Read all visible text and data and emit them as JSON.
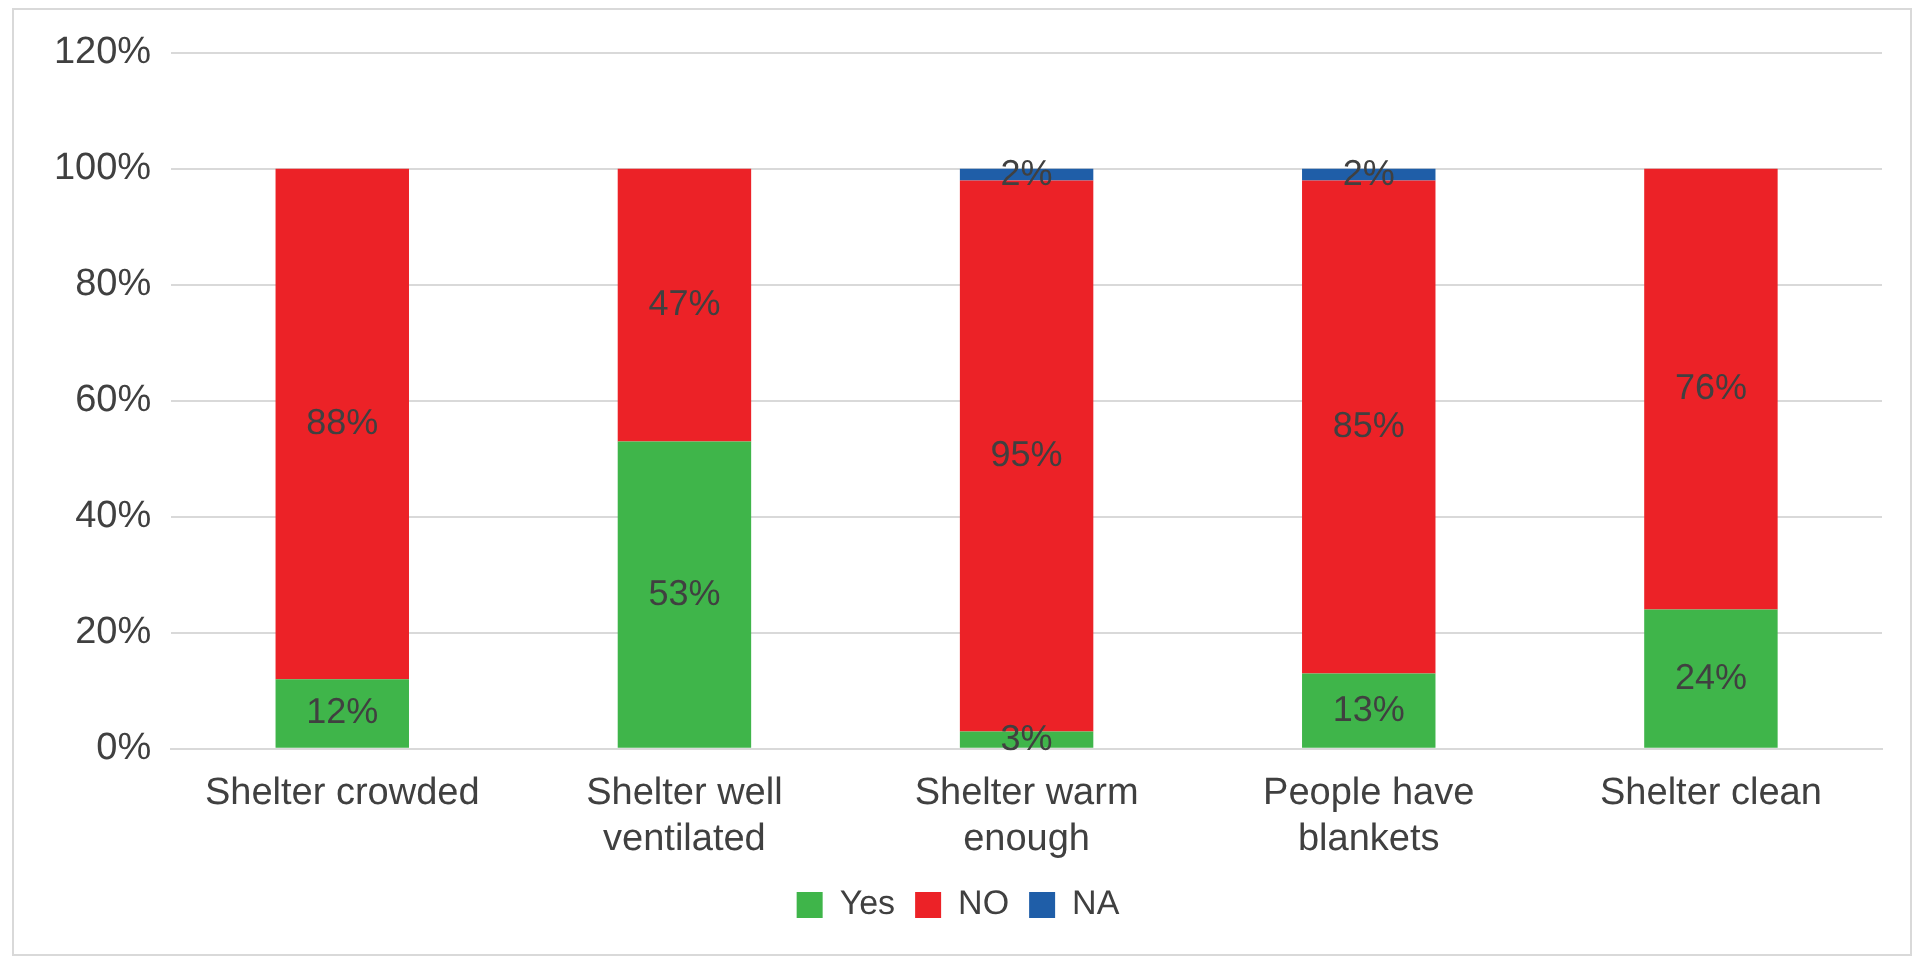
{
  "chart_data": {
    "type": "bar",
    "stacked": true,
    "categories": [
      "Shelter crowded",
      "Shelter well ventilated",
      "Shelter warm enough",
      "People have blankets",
      "Shelter clean"
    ],
    "series": [
      {
        "name": "Yes",
        "color": "#3fb54a",
        "values": [
          12,
          53,
          3,
          13,
          24
        ],
        "value_labels": [
          "12%",
          "53%",
          "3%",
          "13%",
          "24%"
        ]
      },
      {
        "name": "NO",
        "color": "#ec2227",
        "values": [
          88,
          47,
          95,
          85,
          76
        ],
        "value_labels": [
          "88%",
          "47%",
          "95%",
          "85%",
          "76%"
        ]
      },
      {
        "name": "NA",
        "color": "#1f5ea8",
        "values": [
          null,
          null,
          2,
          2,
          null
        ],
        "value_labels": [
          null,
          null,
          "2%",
          "2%",
          null
        ]
      }
    ],
    "ylim": [
      0,
      120
    ],
    "yticks": [
      {
        "value": 0,
        "label": "0%"
      },
      {
        "value": 20,
        "label": "20%"
      },
      {
        "value": 40,
        "label": "40%"
      },
      {
        "value": 60,
        "label": "60%"
      },
      {
        "value": 80,
        "label": "80%"
      },
      {
        "value": 100,
        "label": "100%"
      },
      {
        "value": 120,
        "label": "120%"
      }
    ],
    "grid": "y",
    "legend": "bottom"
  }
}
